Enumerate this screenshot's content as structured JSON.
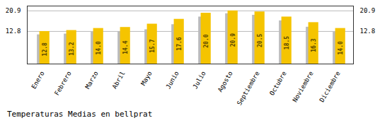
{
  "chart_data": {
    "type": "bar",
    "title": "Temperaturas Medias en bellprat",
    "categories": [
      "Enero",
      "Febrero",
      "Marzo",
      "Abril",
      "Mayo",
      "Junio",
      "Julio",
      "Agosto",
      "Septiembre",
      "Octubre",
      "Noviembre",
      "Diciembre"
    ],
    "series": [
      {
        "color": "#BBBBBB",
        "values": [
          11.5,
          11.8,
          12.5,
          12.8,
          13.5,
          15.5,
          18.5,
          19.8,
          19.2,
          17.0,
          14.5,
          12.5
        ]
      },
      {
        "color": "#F5C400",
        "values": [
          12.8,
          13.2,
          14.0,
          14.4,
          15.7,
          17.6,
          20.0,
          20.9,
          20.5,
          18.5,
          16.3,
          14.0
        ],
        "value_labels": [
          "12.8",
          "13.2",
          "14.0",
          "14.4",
          "15.7",
          "17.6",
          "20.0",
          "20.9",
          "20.5",
          "18.5",
          "16.3",
          "14.0"
        ]
      }
    ],
    "data_labels": true,
    "ylim": [
      0,
      22.8
    ],
    "yticks": [
      12.8,
      20.9
    ],
    "y2lim": [
      0,
      22.8
    ],
    "y2ticks": [
      12.8,
      20.9
    ],
    "grid": true
  }
}
